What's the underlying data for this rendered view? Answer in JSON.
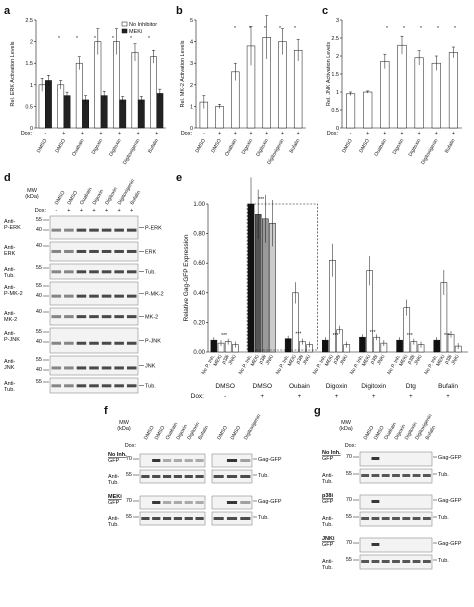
{
  "panels": {
    "a": "a",
    "b": "b",
    "c": "c",
    "d": "d",
    "e": "e",
    "f": "f",
    "g": "g"
  },
  "chart_data": [
    {
      "panel": "a",
      "type": "bar",
      "ylabel": "Rel. ERK Activation Levels",
      "ylim": [
        0,
        2.5
      ],
      "yticks": [
        "0",
        "0.5",
        "1",
        "1.5",
        "2",
        "2.5"
      ],
      "row_label": "Dox:",
      "dox": [
        "-",
        "+",
        "+",
        "+",
        "+",
        "+",
        "+"
      ],
      "categories": [
        "DMSO",
        "DMSO",
        "Ouabain",
        "Digoxin",
        "Digitoxin",
        "Digitoxigenin",
        "Bufalin"
      ],
      "legend": [
        "No Inhibitor",
        "MEKi"
      ],
      "series": [
        {
          "name": "No Inhibitor",
          "values": [
            1.0,
            1.0,
            1.5,
            2.0,
            2.0,
            1.75,
            1.65
          ],
          "err": [
            0.15,
            0.1,
            0.15,
            0.3,
            0.3,
            0.2,
            0.15
          ],
          "color": "#ffffff"
        },
        {
          "name": "MEKi",
          "values": [
            1.1,
            0.75,
            0.65,
            0.75,
            0.65,
            0.65,
            0.8
          ],
          "err": [
            0.12,
            0.08,
            0.1,
            0.1,
            0.08,
            0.08,
            0.1
          ],
          "color": "#222222"
        }
      ]
    },
    {
      "panel": "b",
      "type": "bar",
      "ylabel": "Rel. MK-2 Activation Levels",
      "ylim": [
        0,
        5
      ],
      "yticks": [
        "0",
        "1",
        "2",
        "3",
        "4",
        "5"
      ],
      "row_label": "Dox:",
      "dox": [
        "-",
        "+",
        "+",
        "+",
        "+",
        "+",
        "+"
      ],
      "categories": [
        "DMSO",
        "DMSO",
        "Ouabain",
        "Digoxin",
        "Digitoxin",
        "Digitoxigenin",
        "Bufalin"
      ],
      "series": [
        {
          "name": "",
          "values": [
            1.2,
            1.0,
            2.6,
            3.8,
            4.2,
            4.0,
            3.6
          ],
          "err": [
            0.3,
            0.1,
            0.4,
            0.9,
            1.0,
            0.6,
            0.5
          ],
          "color": "#ffffff"
        }
      ]
    },
    {
      "panel": "c",
      "type": "bar",
      "ylabel": "Rel. JNK Activation Levels",
      "ylim": [
        0,
        3
      ],
      "yticks": [
        "0",
        "0.5",
        "1",
        "1.5",
        "2",
        "2.5",
        "3"
      ],
      "row_label": "Dox:",
      "dox": [
        "-",
        "+",
        "+",
        "+",
        "+",
        "+",
        "+"
      ],
      "categories": [
        "DMSO",
        "DMSO",
        "Ouabain",
        "Digoxin",
        "Digitoxin",
        "Digitoxigenin",
        "Bufalin"
      ],
      "series": [
        {
          "name": "",
          "values": [
            0.95,
            1.0,
            1.85,
            2.3,
            1.95,
            1.8,
            2.1
          ],
          "err": [
            0.05,
            0.03,
            0.2,
            0.25,
            0.2,
            0.2,
            0.15
          ],
          "color": "#ffffff"
        }
      ]
    },
    {
      "panel": "e",
      "type": "bar",
      "ylabel": "Relative Gag-GFP Expression",
      "ylim": [
        0,
        1.0
      ],
      "yticks": [
        "0.00",
        "0.20",
        "0.40",
        "0.60",
        "0.80",
        "1.00"
      ],
      "row_label": "Dox:",
      "groups": [
        {
          "label": "DMSO",
          "dox": "-",
          "values": [
            0.08,
            0.06,
            0.07,
            0.05
          ]
        },
        {
          "label": "DMSO",
          "dox": "+",
          "values": [
            1.0,
            0.93,
            0.9,
            0.87
          ]
        },
        {
          "label": "Oubain",
          "dox": "+",
          "values": [
            0.09,
            0.4,
            0.07,
            0.05
          ]
        },
        {
          "label": "Digoxin",
          "dox": "+",
          "values": [
            0.08,
            0.62,
            0.15,
            0.05
          ]
        },
        {
          "label": "Digitoxin",
          "dox": "+",
          "values": [
            0.1,
            0.55,
            0.1,
            0.06
          ]
        },
        {
          "label": "Dtg",
          "dox": "+",
          "values": [
            0.08,
            0.3,
            0.07,
            0.05
          ]
        },
        {
          "label": "Bufalin",
          "dox": "+",
          "values": [
            0.08,
            0.47,
            0.12,
            0.04
          ]
        }
      ],
      "subcategories": [
        "No P. Inh.",
        "MEKi",
        "p38i",
        "JNKi"
      ]
    }
  ],
  "blot_d": {
    "mw_header": "MW\n(kDa)",
    "dox_label": "Dox:",
    "dox": [
      "-",
      "+",
      "+",
      "+",
      "+",
      "+",
      "+"
    ],
    "lanes": [
      "DMSO",
      "DMSO",
      "Ouabain",
      "Digoxin",
      "Digitoxin",
      "Digitoxigenin",
      "Bufalin"
    ],
    "rows": [
      {
        "ab": "Anti-\nP-ERK",
        "mw": [
          "55",
          "40"
        ],
        "target": "P-ERK"
      },
      {
        "ab": "Anti-\nERK",
        "mw": [
          "40"
        ],
        "target": "ERK"
      },
      {
        "ab": "Anti-\nTub.",
        "mw": [
          "55"
        ],
        "target": "Tub."
      },
      {
        "ab": "Anti-\nP-MK-2",
        "mw": [
          "55",
          "40"
        ],
        "target": "P-MK-2"
      },
      {
        "ab": "Anti-\nMK-2",
        "mw": [
          "40"
        ],
        "target": "MK-2"
      },
      {
        "ab": "Anti-\nP-JNK",
        "mw": [
          "55",
          "40"
        ],
        "target": "P-JNK"
      },
      {
        "ab": "Anti-\nJNK",
        "mw": [
          "55",
          "40"
        ],
        "target": "JNK"
      },
      {
        "ab": "Anti-\nTub.",
        "mw": [
          "55"
        ],
        "target": "Tub."
      }
    ]
  },
  "blot_f": {
    "mw_header": "MW\n(kDa)",
    "dox_label": "Dox:",
    "lanes_left": [
      "DMSO",
      "DMSO",
      "Ouabain",
      "Digoxin",
      "Digitoxin",
      "Bufalin"
    ],
    "lanes_right": [
      "DMSO",
      "DMSO",
      "Digitoxigenin"
    ],
    "sections": [
      {
        "title": "No Inh.",
        "rows": [
          {
            "ab": "GFP",
            "mw": "70",
            "target": "Gag-GFP"
          },
          {
            "ab": "Anti-\nTub.",
            "mw": "55",
            "target": "Tub."
          }
        ]
      },
      {
        "title": "MEKi",
        "rows": [
          {
            "ab": "GFP",
            "mw": "70",
            "target": "Gag-GFP"
          },
          {
            "ab": "Anti-\nTub.",
            "mw": "55",
            "target": "Tub."
          }
        ]
      }
    ]
  },
  "blot_g": {
    "mw_header": "MW\n(kDa)",
    "dox_label": "Dox:",
    "lanes": [
      "DMSO",
      "DMSO",
      "Ouabain",
      "Digoxin",
      "Digitoxin",
      "Digitoxigenin",
      "Bufalin"
    ],
    "sections": [
      {
        "title": "No Inh.",
        "rows": [
          {
            "ab": "GFP",
            "mw": "70",
            "target": "Gag-GFP"
          },
          {
            "ab": "Anti-\nTub.",
            "mw": "55",
            "target": "Tub."
          }
        ]
      },
      {
        "title": "p38i",
        "rows": [
          {
            "ab": "GFP",
            "mw": "70",
            "target": "Gag-GFP"
          },
          {
            "ab": "Anti-\nTub.",
            "mw": "55",
            "target": "Tub."
          }
        ]
      },
      {
        "title": "JNKi",
        "rows": [
          {
            "ab": "GFP",
            "mw": "70",
            "target": "Gag-GFP"
          },
          {
            "ab": "Anti-\nTub.",
            "mw": "55",
            "target": "Tub."
          }
        ]
      }
    ]
  },
  "significance_marks": [
    "*",
    "**",
    "***"
  ]
}
